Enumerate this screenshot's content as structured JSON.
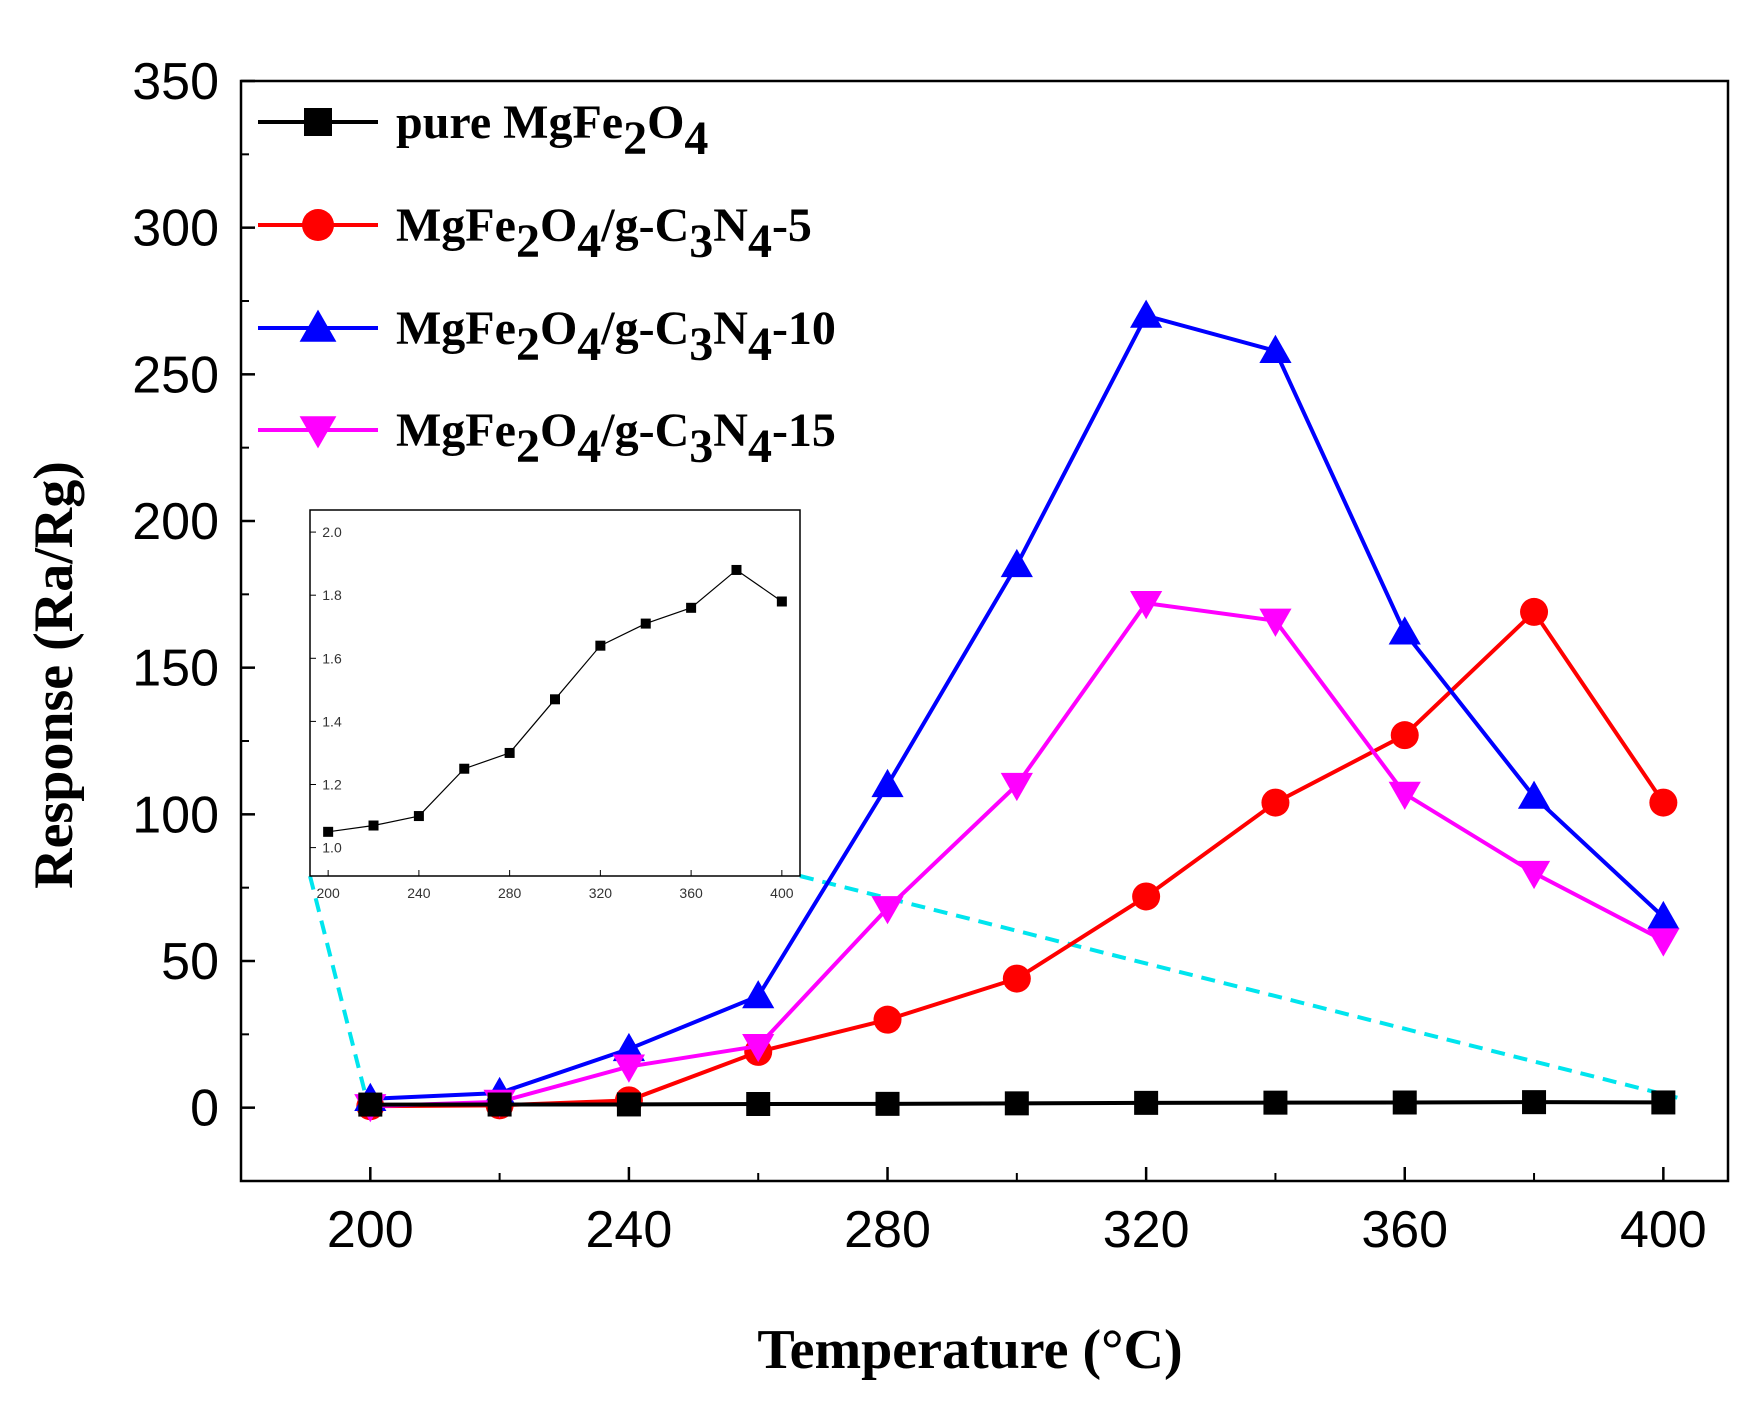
{
  "chart_data": [
    {
      "type": "line",
      "xlabel": "Temperature (°C)",
      "ylabel": "Response (Ra/Rg)",
      "xlim": [
        180,
        410
      ],
      "ylim": [
        -25,
        350
      ],
      "xticks": [
        200,
        240,
        280,
        320,
        360,
        400
      ],
      "yticks": [
        0,
        50,
        100,
        150,
        200,
        250,
        300,
        350
      ],
      "x": [
        200,
        220,
        240,
        260,
        280,
        300,
        320,
        340,
        360,
        380,
        400
      ],
      "series": [
        {
          "name": "pure MgFe2O4",
          "legend": {
            "base": "pure MgFe",
            "sub1": "2",
            "mid1": "O",
            "sub2": "4",
            "mid2": "",
            "sub3": "",
            "mid3": "",
            "sub4": "",
            "tail": ""
          },
          "color": "#000000",
          "marker": "square",
          "values": [
            1.05,
            1.07,
            1.1,
            1.25,
            1.3,
            1.47,
            1.64,
            1.71,
            1.76,
            1.88,
            1.78
          ]
        },
        {
          "name": "MgFe2O4/g-C3N4-5",
          "legend": {
            "base": "MgFe",
            "sub1": "2",
            "mid1": "O",
            "sub2": "4",
            "mid2": "/g-C",
            "sub3": "3",
            "mid3": "N",
            "sub4": "4",
            "tail": "-5"
          },
          "color": "#ff0000",
          "marker": "circle",
          "values": [
            0.5,
            0.8,
            2.5,
            19,
            30,
            44,
            72,
            104,
            127,
            169,
            104
          ]
        },
        {
          "name": "MgFe2O4/g-C3N4-10",
          "legend": {
            "base": "MgFe",
            "sub1": "2",
            "mid1": "O",
            "sub2": "4",
            "mid2": "/g-C",
            "sub3": "3",
            "mid3": "N",
            "sub4": "4",
            "tail": "-10"
          },
          "color": "#0000ff",
          "marker": "triangle-up",
          "values": [
            3,
            5,
            20,
            38,
            110,
            185,
            270,
            258,
            162,
            106,
            65
          ]
        },
        {
          "name": "MgFe2O4/g-C3N4-15",
          "legend": {
            "base": "MgFe",
            "sub1": "2",
            "mid1": "O",
            "sub2": "4",
            "mid2": "/g-C",
            "sub3": "3",
            "mid3": "N",
            "sub4": "4",
            "tail": "-15"
          },
          "color": "#ff00ff",
          "marker": "triangle-down",
          "values": [
            0.5,
            2,
            14,
            21,
            68,
            110,
            172,
            166,
            107,
            80,
            57
          ]
        }
      ]
    },
    {
      "type": "line",
      "role": "inset",
      "xlim": [
        192,
        408
      ],
      "ylim": [
        0.91,
        2.07
      ],
      "xticks": [
        200,
        240,
        280,
        320,
        360,
        400
      ],
      "yticks": [
        1.0,
        1.2,
        1.4,
        1.6,
        1.8,
        2.0
      ],
      "ytick_labels": [
        "1.0",
        "1.2",
        "1.4",
        "1.6",
        "1.8",
        "2.0"
      ],
      "x": [
        200,
        220,
        240,
        260,
        280,
        300,
        320,
        340,
        360,
        380,
        400
      ],
      "series": [
        {
          "name": "pure MgFe2O4",
          "color": "#000000",
          "marker": "square",
          "values": [
            1.05,
            1.07,
            1.1,
            1.25,
            1.3,
            1.47,
            1.64,
            1.71,
            1.76,
            1.88,
            1.78
          ]
        }
      ],
      "callout_color": "#00e5ee"
    }
  ]
}
